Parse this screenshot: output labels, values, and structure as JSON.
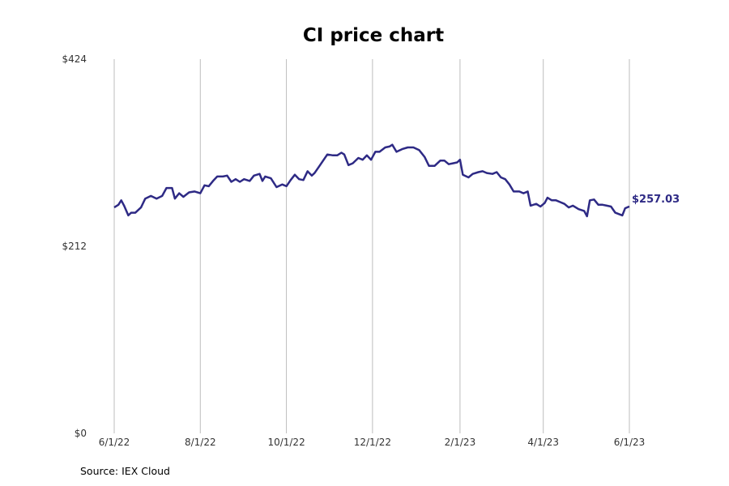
{
  "chart_data": {
    "type": "line",
    "title": "CI price chart",
    "source": "Source: IEX Cloud",
    "line_color": "#2e2a85",
    "grid": "vertical",
    "ylim": [
      0,
      424
    ],
    "y_ticks": [
      {
        "value": 0,
        "label": "$0"
      },
      {
        "value": 212,
        "label": "$212"
      },
      {
        "value": 424,
        "label": "$424"
      }
    ],
    "x_ticks": [
      {
        "date": "2022-06-01",
        "label": "6/1/22"
      },
      {
        "date": "2022-08-01",
        "label": "8/1/22"
      },
      {
        "date": "2022-10-01",
        "label": "10/1/22"
      },
      {
        "date": "2022-12-01",
        "label": "12/1/22"
      },
      {
        "date": "2023-02-01",
        "label": "2/1/23"
      },
      {
        "date": "2023-04-01",
        "label": "4/1/23"
      },
      {
        "date": "2023-06-01",
        "label": "6/1/23"
      }
    ],
    "last_value_label": "$257.03",
    "series": [
      {
        "name": "",
        "points": [
          [
            "2022-06-01",
            256
          ],
          [
            "2022-06-04",
            259
          ],
          [
            "2022-06-06",
            264
          ],
          [
            "2022-06-08",
            258
          ],
          [
            "2022-06-11",
            247
          ],
          [
            "2022-06-13",
            250
          ],
          [
            "2022-06-16",
            250
          ],
          [
            "2022-06-20",
            256
          ],
          [
            "2022-06-23",
            266
          ],
          [
            "2022-06-27",
            269
          ],
          [
            "2022-07-01",
            266
          ],
          [
            "2022-07-05",
            269
          ],
          [
            "2022-07-08",
            278
          ],
          [
            "2022-07-12",
            278
          ],
          [
            "2022-07-14",
            266
          ],
          [
            "2022-07-17",
            272
          ],
          [
            "2022-07-20",
            268
          ],
          [
            "2022-07-24",
            273
          ],
          [
            "2022-07-28",
            274
          ],
          [
            "2022-08-01",
            272
          ],
          [
            "2022-08-04",
            281
          ],
          [
            "2022-08-07",
            280
          ],
          [
            "2022-08-10",
            286
          ],
          [
            "2022-08-13",
            291
          ],
          [
            "2022-08-17",
            291
          ],
          [
            "2022-08-20",
            292
          ],
          [
            "2022-08-23",
            285
          ],
          [
            "2022-08-26",
            288
          ],
          [
            "2022-08-29",
            285
          ],
          [
            "2022-09-01",
            288
          ],
          [
            "2022-09-05",
            286
          ],
          [
            "2022-09-08",
            292
          ],
          [
            "2022-09-12",
            294
          ],
          [
            "2022-09-14",
            286
          ],
          [
            "2022-09-16",
            291
          ],
          [
            "2022-09-20",
            289
          ],
          [
            "2022-09-24",
            279
          ],
          [
            "2022-09-28",
            282
          ],
          [
            "2022-10-01",
            280
          ],
          [
            "2022-10-04",
            287
          ],
          [
            "2022-10-07",
            293
          ],
          [
            "2022-10-10",
            288
          ],
          [
            "2022-10-13",
            287
          ],
          [
            "2022-10-16",
            297
          ],
          [
            "2022-10-19",
            292
          ],
          [
            "2022-10-21",
            295
          ],
          [
            "2022-10-24",
            302
          ],
          [
            "2022-10-27",
            309
          ],
          [
            "2022-10-30",
            316
          ],
          [
            "2022-11-03",
            315
          ],
          [
            "2022-11-06",
            315
          ],
          [
            "2022-11-09",
            318
          ],
          [
            "2022-11-11",
            316
          ],
          [
            "2022-11-14",
            304
          ],
          [
            "2022-11-17",
            306
          ],
          [
            "2022-11-21",
            312
          ],
          [
            "2022-11-24",
            310
          ],
          [
            "2022-11-27",
            315
          ],
          [
            "2022-11-30",
            310
          ],
          [
            "2022-12-03",
            319
          ],
          [
            "2022-12-06",
            319
          ],
          [
            "2022-12-10",
            324
          ],
          [
            "2022-12-13",
            325
          ],
          [
            "2022-12-15",
            327
          ],
          [
            "2022-12-18",
            319
          ],
          [
            "2022-12-22",
            322
          ],
          [
            "2022-12-26",
            324
          ],
          [
            "2022-12-30",
            324
          ],
          [
            "2023-01-03",
            321
          ],
          [
            "2023-01-07",
            313
          ],
          [
            "2023-01-10",
            303
          ],
          [
            "2023-01-14",
            303
          ],
          [
            "2023-01-18",
            309
          ],
          [
            "2023-01-21",
            309
          ],
          [
            "2023-01-24",
            305
          ],
          [
            "2023-01-27",
            306
          ],
          [
            "2023-01-30",
            307
          ],
          [
            "2023-02-01",
            310
          ],
          [
            "2023-02-03",
            293
          ],
          [
            "2023-02-07",
            290
          ],
          [
            "2023-02-10",
            294
          ],
          [
            "2023-02-14",
            296
          ],
          [
            "2023-02-17",
            297
          ],
          [
            "2023-02-20",
            295
          ],
          [
            "2023-02-24",
            294
          ],
          [
            "2023-02-27",
            296
          ],
          [
            "2023-03-02",
            290
          ],
          [
            "2023-03-05",
            288
          ],
          [
            "2023-03-08",
            282
          ],
          [
            "2023-03-11",
            274
          ],
          [
            "2023-03-15",
            274
          ],
          [
            "2023-03-18",
            272
          ],
          [
            "2023-03-21",
            274
          ],
          [
            "2023-03-23",
            258
          ],
          [
            "2023-03-27",
            260
          ],
          [
            "2023-03-30",
            257
          ],
          [
            "2023-04-02",
            261
          ],
          [
            "2023-04-04",
            267
          ],
          [
            "2023-04-07",
            264
          ],
          [
            "2023-04-10",
            264
          ],
          [
            "2023-04-13",
            262
          ],
          [
            "2023-04-16",
            260
          ],
          [
            "2023-04-19",
            256
          ],
          [
            "2023-04-22",
            258
          ],
          [
            "2023-04-26",
            254
          ],
          [
            "2023-04-30",
            252
          ],
          [
            "2023-05-02",
            246
          ],
          [
            "2023-05-04",
            264
          ],
          [
            "2023-05-07",
            265
          ],
          [
            "2023-05-10",
            259
          ],
          [
            "2023-05-13",
            259
          ],
          [
            "2023-05-16",
            258
          ],
          [
            "2023-05-19",
            257
          ],
          [
            "2023-05-22",
            250
          ],
          [
            "2023-05-27",
            247
          ],
          [
            "2023-05-29",
            255
          ],
          [
            "2023-06-01",
            257.03
          ]
        ]
      }
    ]
  }
}
